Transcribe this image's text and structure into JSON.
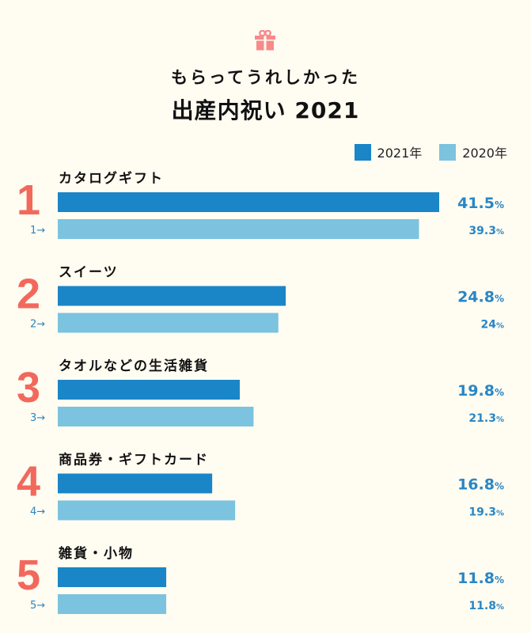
{
  "header": {
    "icon": "gift-icon",
    "title_line1": "もらってうれしかった",
    "title_line2": "出産内祝い 2021"
  },
  "colors": {
    "series_2021": "#1a85c7",
    "series_2020": "#7bc3df",
    "rank": "#f2695c",
    "value_text": "#2a86c4",
    "icon": "#f88a8a",
    "background": "#fffcf2"
  },
  "legend": {
    "items": [
      {
        "label": "2021年",
        "color": "#1a85c7"
      },
      {
        "label": "2020年",
        "color": "#7bc3df"
      }
    ],
    "position": "top-right"
  },
  "chart_data": {
    "type": "bar",
    "orientation": "horizontal",
    "title": "もらってうれしかった 出産内祝い 2021",
    "xlabel": "",
    "ylabel": "",
    "unit": "%",
    "xlim": [
      0,
      41.5
    ],
    "grid": false,
    "legend": "top-right",
    "categories": [
      "カタログギフト",
      "スイーツ",
      "タオルなどの生活雑貨",
      "商品券・ギフトカード",
      "雑貨・小物"
    ],
    "ranks": [
      "1",
      "2",
      "3",
      "4",
      "5"
    ],
    "prev_rank_labels": [
      "1→",
      "2→",
      "3→",
      "4→",
      "5→"
    ],
    "series": [
      {
        "name": "2021年",
        "values": [
          41.5,
          24.8,
          19.8,
          16.8,
          11.8
        ],
        "labels": [
          "41.5",
          "24.8",
          "19.8",
          "16.8",
          "11.8"
        ]
      },
      {
        "name": "2020年",
        "values": [
          39.3,
          24,
          21.3,
          19.3,
          11.8
        ],
        "labels": [
          "39.3",
          "24",
          "21.3",
          "19.3",
          "11.8"
        ]
      }
    ],
    "percent_sign": "%"
  }
}
